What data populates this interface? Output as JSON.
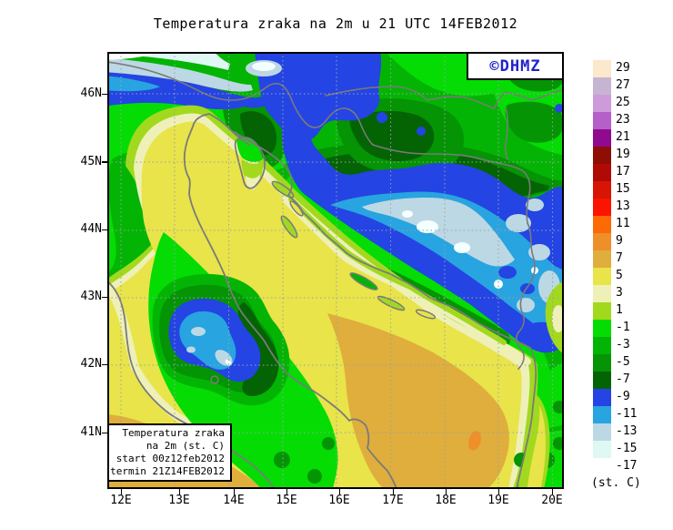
{
  "title": "Temperatura zraka na 2m u 21 UTC 14FEB2012",
  "watermark": "©DHMZ",
  "watermark_color": "#2222cc",
  "axes": {
    "lat_labels": [
      "46N",
      "45N",
      "44N",
      "43N",
      "42N",
      "41N"
    ],
    "lon_labels": [
      "12E",
      "13E",
      "14E",
      "15E",
      "16E",
      "17E",
      "18E",
      "19E",
      "20E"
    ]
  },
  "legend": {
    "unit_label": "(st. C)",
    "entries": [
      {
        "value": "29",
        "color": "#fce8cc"
      },
      {
        "value": "27",
        "color": "#c6b5d2"
      },
      {
        "value": "25",
        "color": "#cd9bd9"
      },
      {
        "value": "23",
        "color": "#b55fc9"
      },
      {
        "value": "21",
        "color": "#8f0a8f"
      },
      {
        "value": "19",
        "color": "#8e0d04"
      },
      {
        "value": "17",
        "color": "#b00a04"
      },
      {
        "value": "15",
        "color": "#d81404"
      },
      {
        "value": "13",
        "color": "#fb1400"
      },
      {
        "value": "11",
        "color": "#fb6a04"
      },
      {
        "value": "9",
        "color": "#ee8f2a"
      },
      {
        "value": "7",
        "color": "#dfae3c"
      },
      {
        "value": "5",
        "color": "#e8e44a"
      },
      {
        "value": "3",
        "color": "#eef0b8"
      },
      {
        "value": "1",
        "color": "#a2d91e"
      },
      {
        "value": "-1",
        "color": "#04dc04"
      },
      {
        "value": "-3",
        "color": "#04b404"
      },
      {
        "value": "-5",
        "color": "#049404"
      },
      {
        "value": "-7",
        "color": "#046404"
      },
      {
        "value": "-9",
        "color": "#2444e4"
      },
      {
        "value": "-11",
        "color": "#28a4e0"
      },
      {
        "value": "-13",
        "color": "#bcd8e4"
      },
      {
        "value": "-15",
        "color": "#dff8f4"
      },
      {
        "value": "-17",
        "color": "#ffffff"
      }
    ]
  },
  "info_box": {
    "lines": [
      "Temperatura zraka",
      "na 2m (st. C)",
      "start 00z12feb2012",
      "termin 21Z14FEB2012"
    ]
  }
}
